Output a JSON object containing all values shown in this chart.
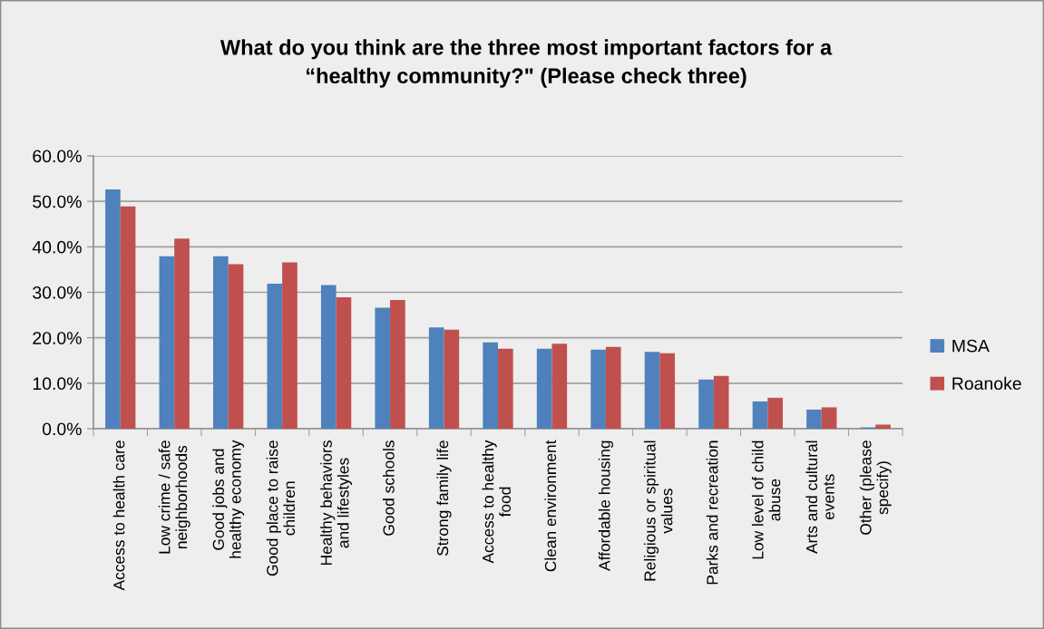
{
  "chart_data": {
    "type": "bar",
    "title": "What do you think are the three most important factors for a\n“healthy community?\" (Please check three)",
    "categories": [
      "Access to health care",
      "Low crime / safe\nneighborhoods",
      "Good jobs and\nhealthy economy",
      "Good place to raise\nchildren",
      "Healthy behaviors\nand lifestyles",
      "Good schools",
      "Strong family life",
      "Access to healthy\nfood",
      "Clean environment",
      "Affordable housing",
      "Religious or spiritual\nvalues",
      "Parks and recreation",
      "Low level of child\nabuse",
      "Arts and cultural\nevents",
      "Other (please\nspecify)"
    ],
    "series": [
      {
        "name": "MSA",
        "color": "#4f81bd",
        "values": [
          52.6,
          37.9,
          37.9,
          31.9,
          31.6,
          26.6,
          22.3,
          19.0,
          17.6,
          17.4,
          16.9,
          10.8,
          6.0,
          4.2,
          0.3
        ]
      },
      {
        "name": "Roanoke",
        "color": "#c0504d",
        "values": [
          48.9,
          41.8,
          36.2,
          36.6,
          28.9,
          28.3,
          21.8,
          17.6,
          18.7,
          18.0,
          16.6,
          11.6,
          6.8,
          4.7,
          0.9
        ]
      }
    ],
    "ylim": [
      0,
      60
    ],
    "yticks": [
      {
        "value": 0,
        "label": "0.0%"
      },
      {
        "value": 10,
        "label": "10.0%"
      },
      {
        "value": 20,
        "label": "20.0%"
      },
      {
        "value": 30,
        "label": "30.0%"
      },
      {
        "value": 40,
        "label": "40.0%"
      },
      {
        "value": 50,
        "label": "50.0%"
      },
      {
        "value": 60,
        "label": "60.0%"
      }
    ],
    "grid": "y",
    "legend": "right"
  }
}
